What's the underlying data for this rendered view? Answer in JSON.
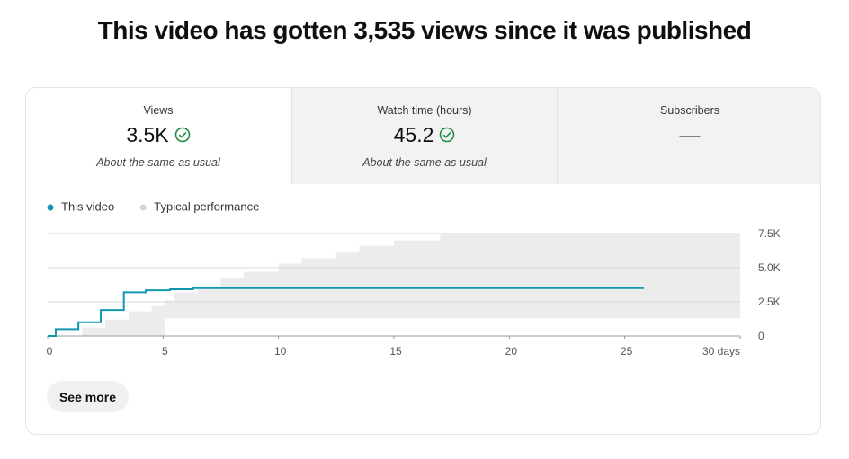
{
  "header": {
    "title": "This video has gotten 3,535 views since it was published"
  },
  "cards": [
    {
      "label": "Views",
      "value": "3.5K",
      "note": "About the same as usual"
    },
    {
      "label": "Watch time (hours)",
      "value": "45.2",
      "note": "About the same as usual"
    },
    {
      "label": "Subscribers",
      "value": "—"
    }
  ],
  "chart_data": {
    "type": "line",
    "series": [
      {
        "name": "This video",
        "color": "#1596b0",
        "step": true,
        "x": [
          0,
          0.35,
          1.33,
          2.3,
          3.3,
          4.25,
          5.3,
          6.3,
          25.8
        ],
        "values": [
          0,
          500,
          1000,
          1900,
          3200,
          3350,
          3420,
          3500,
          3535
        ]
      },
      {
        "name": "Typical performance",
        "color": "#ececec",
        "legend_color": "#d4d4d4",
        "type": "band",
        "step": true,
        "x": [
          0,
          1.5,
          2.5,
          3.5,
          4.5,
          5.1,
          5.5,
          6.5,
          7.5,
          8.5,
          10,
          11,
          12.5,
          13.5,
          15,
          17,
          30
        ],
        "lower": [
          0,
          0,
          0,
          0,
          0,
          1300,
          1300,
          1300,
          1300,
          1300,
          1300,
          1300,
          1300,
          1300,
          1300,
          1300,
          1300
        ],
        "upper": [
          0,
          600,
          1200,
          1800,
          2200,
          2600,
          3200,
          3600,
          4200,
          4700,
          5300,
          5700,
          6100,
          6600,
          7000,
          7500,
          7500
        ]
      }
    ],
    "xlim": [
      0,
      30
    ],
    "xticks": [
      0,
      5,
      10,
      15,
      20,
      25,
      {
        "value": 30,
        "label": "30 days"
      }
    ],
    "ylim": [
      0,
      7500
    ],
    "yticks": [
      0,
      {
        "value": 2500,
        "label": "2.5K"
      },
      {
        "value": 5000,
        "label": "5.0K"
      },
      {
        "value": 7500,
        "label": "7.5K"
      }
    ],
    "grid": true
  },
  "button": "See more"
}
